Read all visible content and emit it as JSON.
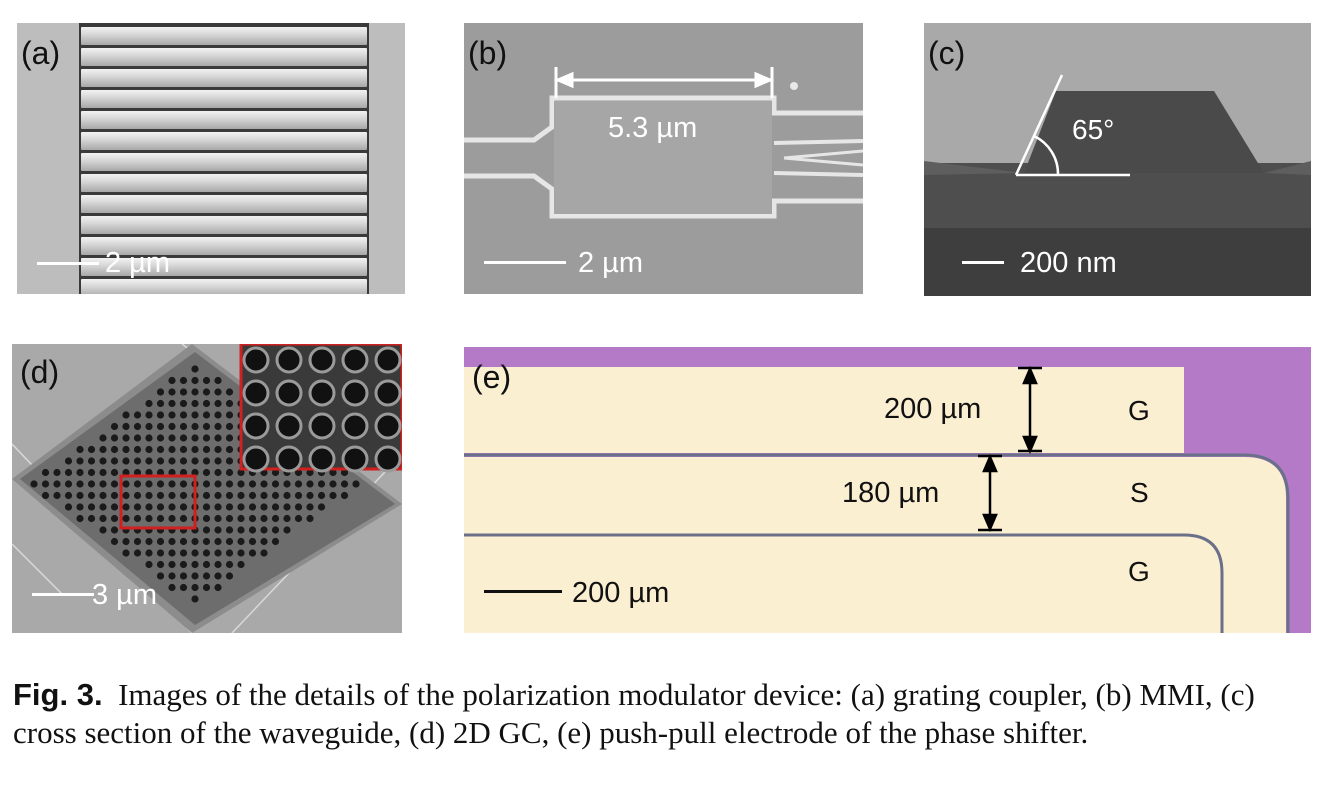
{
  "panels": {
    "a": {
      "label": "(a)",
      "scale_bar": "2 µm"
    },
    "b": {
      "label": "(b)",
      "scale_bar": "2 µm",
      "dimension": "5.3 µm"
    },
    "c": {
      "label": "(c)",
      "scale_bar": "200 nm",
      "angle": "65°"
    },
    "d": {
      "label": "(d)",
      "scale_bar": "3 µm"
    },
    "e": {
      "label": "(e)",
      "scale_bar": "200 µm",
      "gap_top": "200 µm",
      "gap_mid": "180 µm",
      "electrode_top": "G",
      "electrode_mid": "S",
      "electrode_bot": "G"
    }
  },
  "caption": {
    "fig_label": "Fig. 3.",
    "text": "Images of the details of the polarization modulator device: (a) grating coupler, (b) MMI, (c) cross section of the waveguide, (d) 2D GC, (e) push-pull electrode of the phase shifter."
  },
  "colors": {
    "electrode": "#fbefd2",
    "substrate": "#b57ac7",
    "highlight": "#d02020"
  }
}
